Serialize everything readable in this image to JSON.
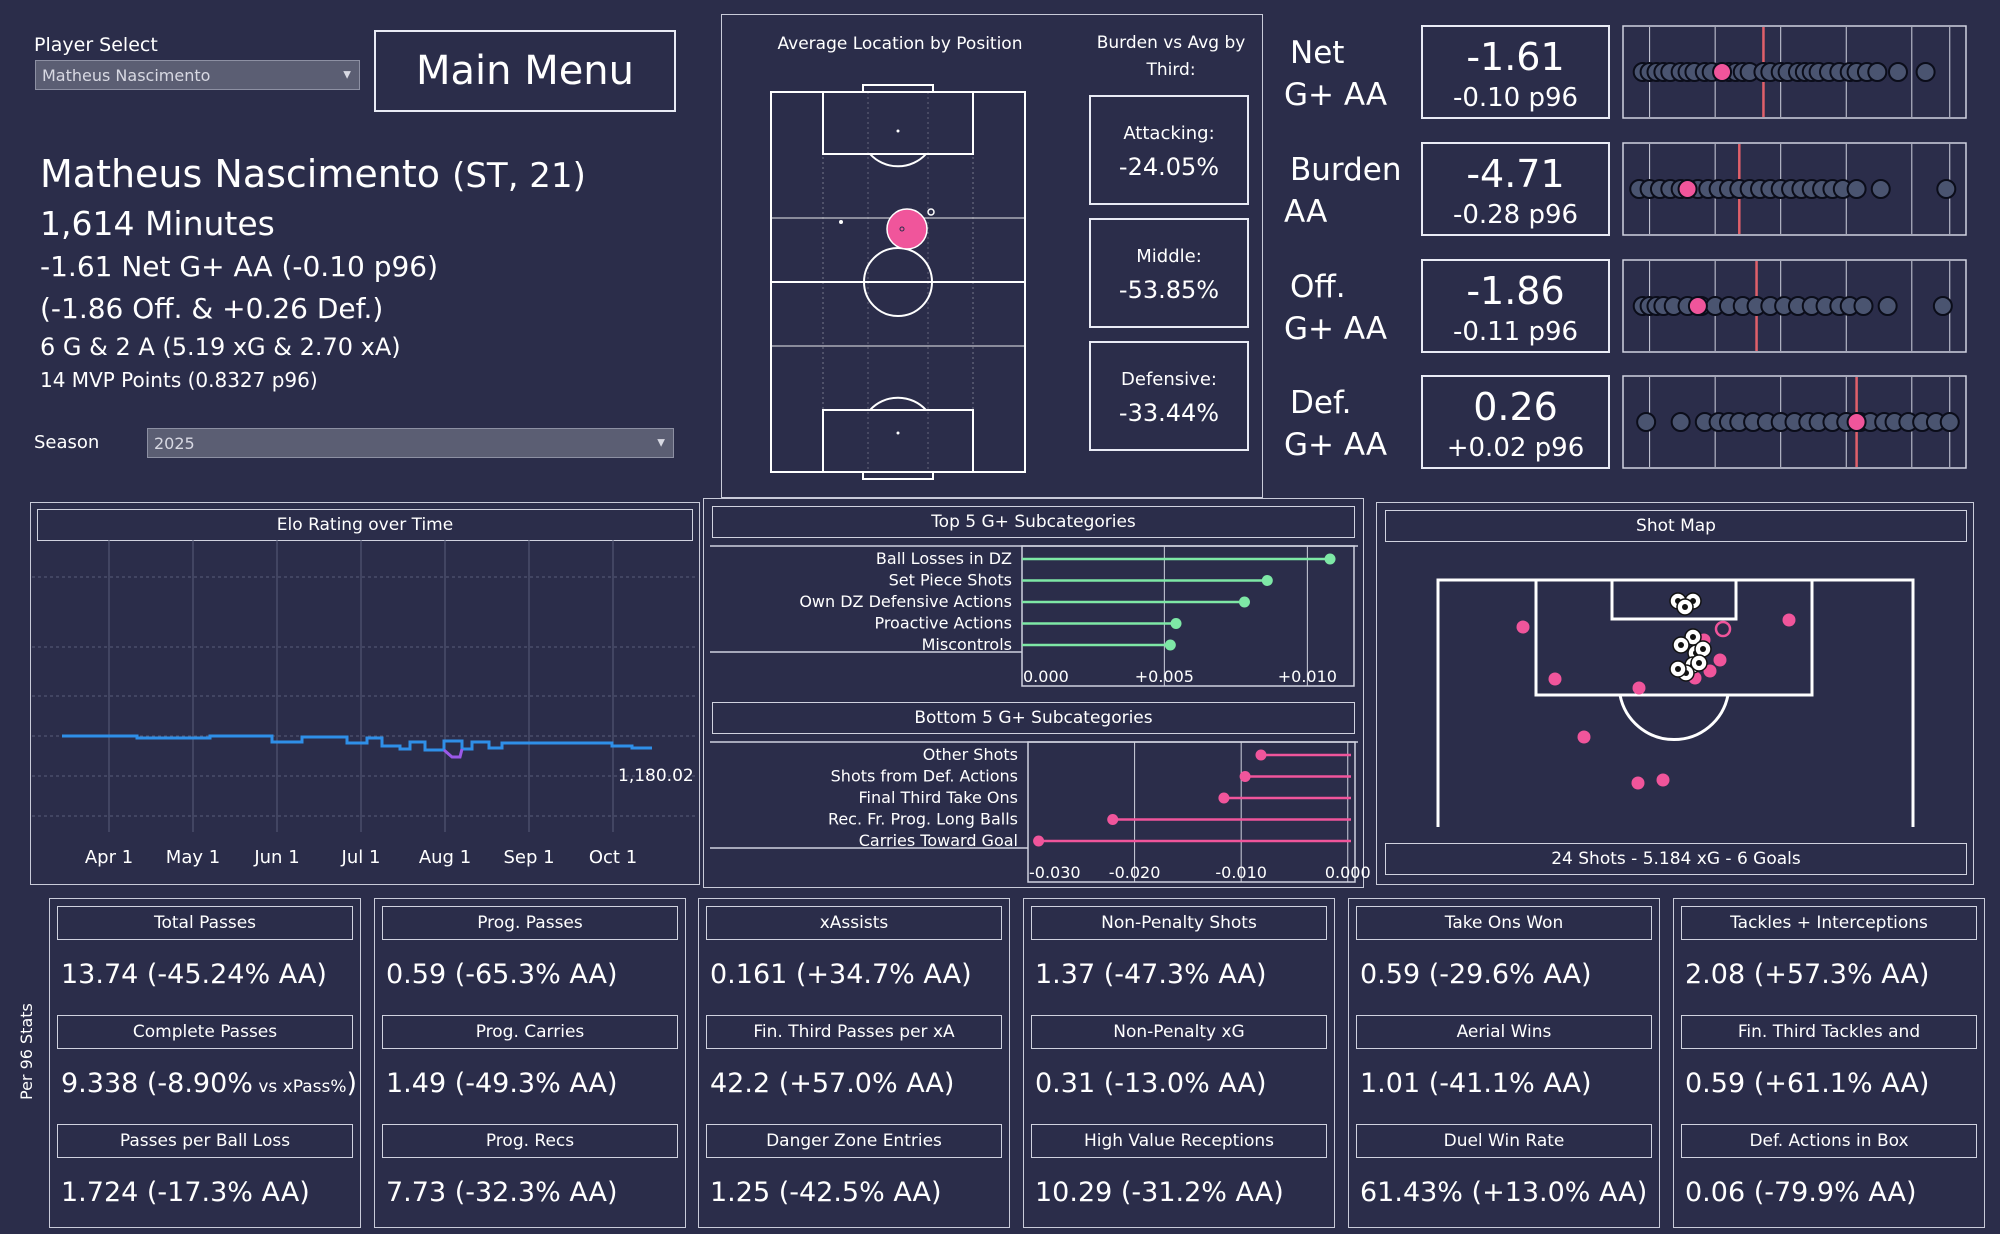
{
  "player_select": {
    "label": "Player Select",
    "value": "Matheus Nascimento"
  },
  "main_menu_label": "Main Menu",
  "profile": {
    "name": "Matheus Nascimento",
    "position_age": "(ST, 21)",
    "minutes": "1,614 Minutes",
    "net_line": "-1.61 Net G+ AA (-0.10 p96)",
    "split_line": "(-1.86 Off. & +0.26 Def.)",
    "goals_line": "6 G & 2 A (5.19 xG & 2.70 xA)",
    "mvp_line": "14 MVP Points (0.8327 p96)"
  },
  "season": {
    "label": "Season",
    "value": "2025"
  },
  "avg_location": {
    "title": "Average Location by Position",
    "burden_title": "Burden vs Avg by Third:",
    "thirds": [
      {
        "label": "Attacking:",
        "value": "-24.05%"
      },
      {
        "label": "Middle:",
        "value": "-53.85%"
      },
      {
        "label": "Defensive:",
        "value": "-33.44%"
      }
    ]
  },
  "metrics": [
    {
      "label_line1": "Net",
      "label_line2": "G+ AA",
      "value": "-1.61",
      "p96": "-0.10 p96",
      "ref": 0.41,
      "player": 0.29,
      "dots": [
        0.06,
        0.08,
        0.1,
        0.12,
        0.14,
        0.17,
        0.19,
        0.21,
        0.24,
        0.26,
        0.31,
        0.33,
        0.35,
        0.37,
        0.41,
        0.43,
        0.46,
        0.48,
        0.51,
        0.53,
        0.55,
        0.57,
        0.6,
        0.63,
        0.66,
        0.68,
        0.71,
        0.74,
        0.8,
        0.88
      ]
    },
    {
      "label_line1": "Burden",
      "label_line2": "AA",
      "value": "-4.71",
      "p96": "-0.28 p96",
      "ref": 0.34,
      "player": 0.19,
      "dots": [
        0.05,
        0.08,
        0.11,
        0.14,
        0.17,
        0.22,
        0.25,
        0.28,
        0.31,
        0.34,
        0.37,
        0.4,
        0.43,
        0.46,
        0.49,
        0.52,
        0.55,
        0.58,
        0.61,
        0.64,
        0.68,
        0.75,
        0.94
      ]
    },
    {
      "label_line1": "Off.",
      "label_line2": "G+ AA",
      "value": "-1.86",
      "p96": "-0.11 p96",
      "ref": 0.39,
      "player": 0.22,
      "dots": [
        0.06,
        0.08,
        0.1,
        0.12,
        0.15,
        0.19,
        0.23,
        0.27,
        0.31,
        0.35,
        0.39,
        0.43,
        0.47,
        0.51,
        0.55,
        0.59,
        0.63,
        0.66,
        0.7,
        0.77,
        0.93
      ]
    },
    {
      "label_line1": "Def.",
      "label_line2": "G+ AA",
      "value": "0.26",
      "p96": "+0.02 p96",
      "ref": 0.68,
      "player": 0.68,
      "dots": [
        0.07,
        0.17,
        0.24,
        0.28,
        0.31,
        0.34,
        0.38,
        0.42,
        0.46,
        0.5,
        0.54,
        0.57,
        0.61,
        0.65,
        0.69,
        0.72,
        0.76,
        0.79,
        0.83,
        0.87,
        0.91,
        0.95
      ]
    }
  ],
  "elo": {
    "title": "Elo Rating over Time",
    "months": [
      "Apr 1",
      "May 1",
      "Jun 1",
      "Jul 1",
      "Aug 1",
      "Sep 1",
      "Oct 1"
    ],
    "end_label": "1,180.02"
  },
  "top5": {
    "title": "Top 5 G+ Subcategories",
    "ticks": [
      "0.000",
      "+0.005",
      "+0.010"
    ],
    "color": "#7ee8a6",
    "chart_data": {
      "type": "lollipop",
      "categories": [
        "Ball Losses in DZ",
        "Set Piece Shots",
        "Own DZ Defensive Actions",
        "Proactive Actions",
        "Miscontrols"
      ],
      "values": [
        0.0108,
        0.0086,
        0.0078,
        0.0054,
        0.0052
      ],
      "xlim": [
        0,
        0.0115
      ]
    }
  },
  "bottom5": {
    "title": "Bottom 5 G+ Subcategories",
    "ticks": [
      "-0.030",
      "-0.020",
      "-0.010",
      "0.000"
    ],
    "color": "#f0559b",
    "chart_data": {
      "type": "lollipop",
      "categories": [
        "Other Shots",
        "Shots from Def. Actions",
        "Final Third Take Ons",
        "Rec. Fr. Prog. Long Balls",
        "Carries Toward Goal"
      ],
      "values": [
        -0.0085,
        -0.01,
        -0.012,
        -0.0225,
        -0.0295
      ],
      "xlim": [
        -0.0305,
        0
      ]
    }
  },
  "shot_map": {
    "title": "Shot Map",
    "summary": "24 Shots - 5.184 xG - 6 Goals"
  },
  "side_label": "Per 96 Stats",
  "stat_columns": [
    {
      "items": [
        {
          "title": "Total Passes",
          "value": "13.74 (-45.24% AA)"
        },
        {
          "title": "Complete Passes",
          "value": "9.338 (-8.90%",
          "suffix": " vs xPass%",
          "close": ")"
        },
        {
          "title": "Passes per Ball Loss",
          "value": "1.724 (-17.3% AA)"
        }
      ]
    },
    {
      "items": [
        {
          "title": "Prog. Passes",
          "value": "0.59 (-65.3% AA)"
        },
        {
          "title": "Prog. Carries",
          "value": "1.49 (-49.3% AA)"
        },
        {
          "title": "Prog. Recs",
          "value": "7.73 (-32.3% AA)"
        }
      ]
    },
    {
      "items": [
        {
          "title": "xAssists",
          "value": "0.161 (+34.7% AA)"
        },
        {
          "title": "Fin. Third Passes per xA",
          "value": "42.2 (+57.0% AA)"
        },
        {
          "title": "Danger Zone Entries",
          "value": "1.25 (-42.5% AA)"
        }
      ]
    },
    {
      "items": [
        {
          "title": "Non-Penalty Shots",
          "value": "1.37 (-47.3% AA)"
        },
        {
          "title": "Non-Penalty xG",
          "value": "0.31 (-13.0% AA)"
        },
        {
          "title": "High Value Receptions",
          "value": "10.29 (-31.2% AA)"
        }
      ]
    },
    {
      "items": [
        {
          "title": "Take Ons Won",
          "value": "0.59 (-29.6% AA)"
        },
        {
          "title": "Aerial Wins",
          "value": "1.01 (-41.1% AA)"
        },
        {
          "title": "Duel Win Rate",
          "value": "61.43% (+13.0% AA)"
        }
      ]
    },
    {
      "items": [
        {
          "title": "Tackles + Interceptions",
          "value": "2.08 (+57.3% AA)"
        },
        {
          "title": "Fin. Third Tackles and",
          "value": "0.59 (+61.1% AA)"
        },
        {
          "title": "Def. Actions in Box",
          "value": "0.06 (-79.9% AA)"
        }
      ]
    }
  ],
  "colors": {
    "background": "#2b2d4a",
    "accent_pink": "#f0559b",
    "elo_line": "#2f8fe8",
    "ref_line": "#e0606a"
  }
}
